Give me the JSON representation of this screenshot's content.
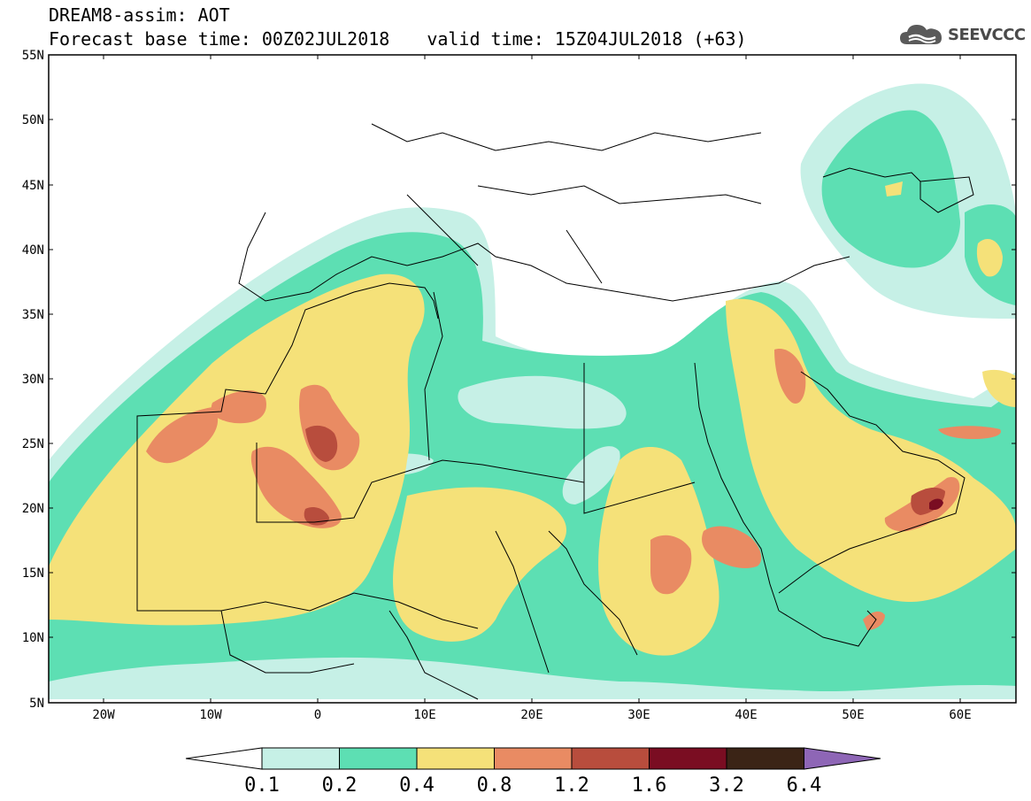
{
  "header": {
    "title": "DREAM8-assim: AOT",
    "base_time": "Forecast base time: 00Z02JUL2018",
    "valid_time": "valid time: 15Z04JUL2018 (+63)"
  },
  "logo": {
    "text": "SEEVCCC",
    "icon": "cloud-icon"
  },
  "map": {
    "lat_labels": [
      "55N",
      "50N",
      "45N",
      "40N",
      "35N",
      "30N",
      "25N",
      "20N",
      "15N",
      "10N",
      "5N"
    ],
    "lon_labels": [
      "20W",
      "10W",
      "0",
      "10E",
      "20E",
      "30E",
      "40E",
      "50E",
      "60E"
    ]
  },
  "colorbar": {
    "labels": [
      "0.1",
      "0.2",
      "0.4",
      "0.8",
      "1.2",
      "1.6",
      "3.2",
      "6.4"
    ],
    "colors": [
      "#ffffff",
      "#c6f0e6",
      "#5ddfb3",
      "#f5e179",
      "#e98b63",
      "#b84d3d",
      "#7a0d22",
      "#3b2416",
      "#8e66b6"
    ]
  }
}
